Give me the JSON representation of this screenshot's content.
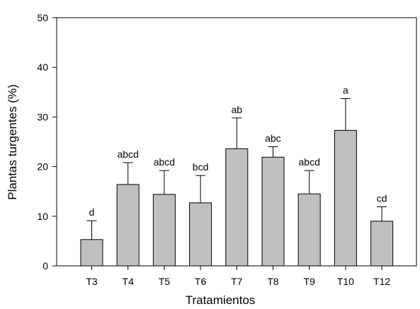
{
  "chart_data": {
    "type": "bar",
    "title": "",
    "xlabel": "Tratamientos",
    "ylabel": "Plantas turgentes (%)",
    "ylim": [
      0,
      50
    ],
    "yticks": [
      0,
      10,
      20,
      30,
      40,
      50
    ],
    "categories": [
      "T3",
      "T4",
      "T5",
      "T6",
      "T7",
      "T8",
      "T9",
      "T10",
      "T12"
    ],
    "values": [
      5.3,
      16.4,
      14.4,
      12.7,
      23.6,
      21.9,
      14.5,
      27.3,
      9.0
    ],
    "error_upper": [
      3.8,
      4.4,
      4.8,
      5.5,
      6.2,
      2.1,
      4.7,
      6.4,
      2.9
    ],
    "significance_labels": [
      "d",
      "abcd",
      "abcd",
      "bcd",
      "ab",
      "abc",
      "abcd",
      "a",
      "cd"
    ],
    "bar_color": "#c0c0c0",
    "grid": false,
    "legend": "none"
  }
}
